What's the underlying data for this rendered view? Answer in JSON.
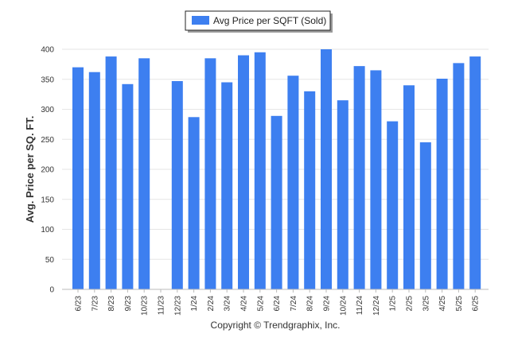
{
  "chart_data": {
    "type": "bar",
    "title": "",
    "xlabel": "",
    "ylabel": "Avg. Price per SQ. FT.",
    "ylim": [
      0,
      400
    ],
    "yticks": [
      0,
      50,
      100,
      150,
      200,
      250,
      300,
      350,
      400
    ],
    "grid": true,
    "legend_position": "top-center",
    "categories": [
      "6/23",
      "7/23",
      "8/23",
      "9/23",
      "10/23",
      "11/23",
      "12/23",
      "1/24",
      "2/24",
      "3/24",
      "4/24",
      "5/24",
      "6/24",
      "7/24",
      "8/24",
      "9/24",
      "10/24",
      "11/24",
      "12/24",
      "1/25",
      "2/25",
      "3/25",
      "4/25",
      "5/25",
      "6/25"
    ],
    "series": [
      {
        "name": "Avg Price per SQFT (Sold)",
        "color": "#3d7ff0",
        "values": [
          370,
          362,
          388,
          342,
          385,
          null,
          347,
          287,
          385,
          345,
          390,
          395,
          289,
          356,
          330,
          400,
          315,
          372,
          365,
          280,
          340,
          245,
          351,
          377,
          388
        ]
      }
    ],
    "footer": "Copyright © Trendgraphix, Inc."
  }
}
